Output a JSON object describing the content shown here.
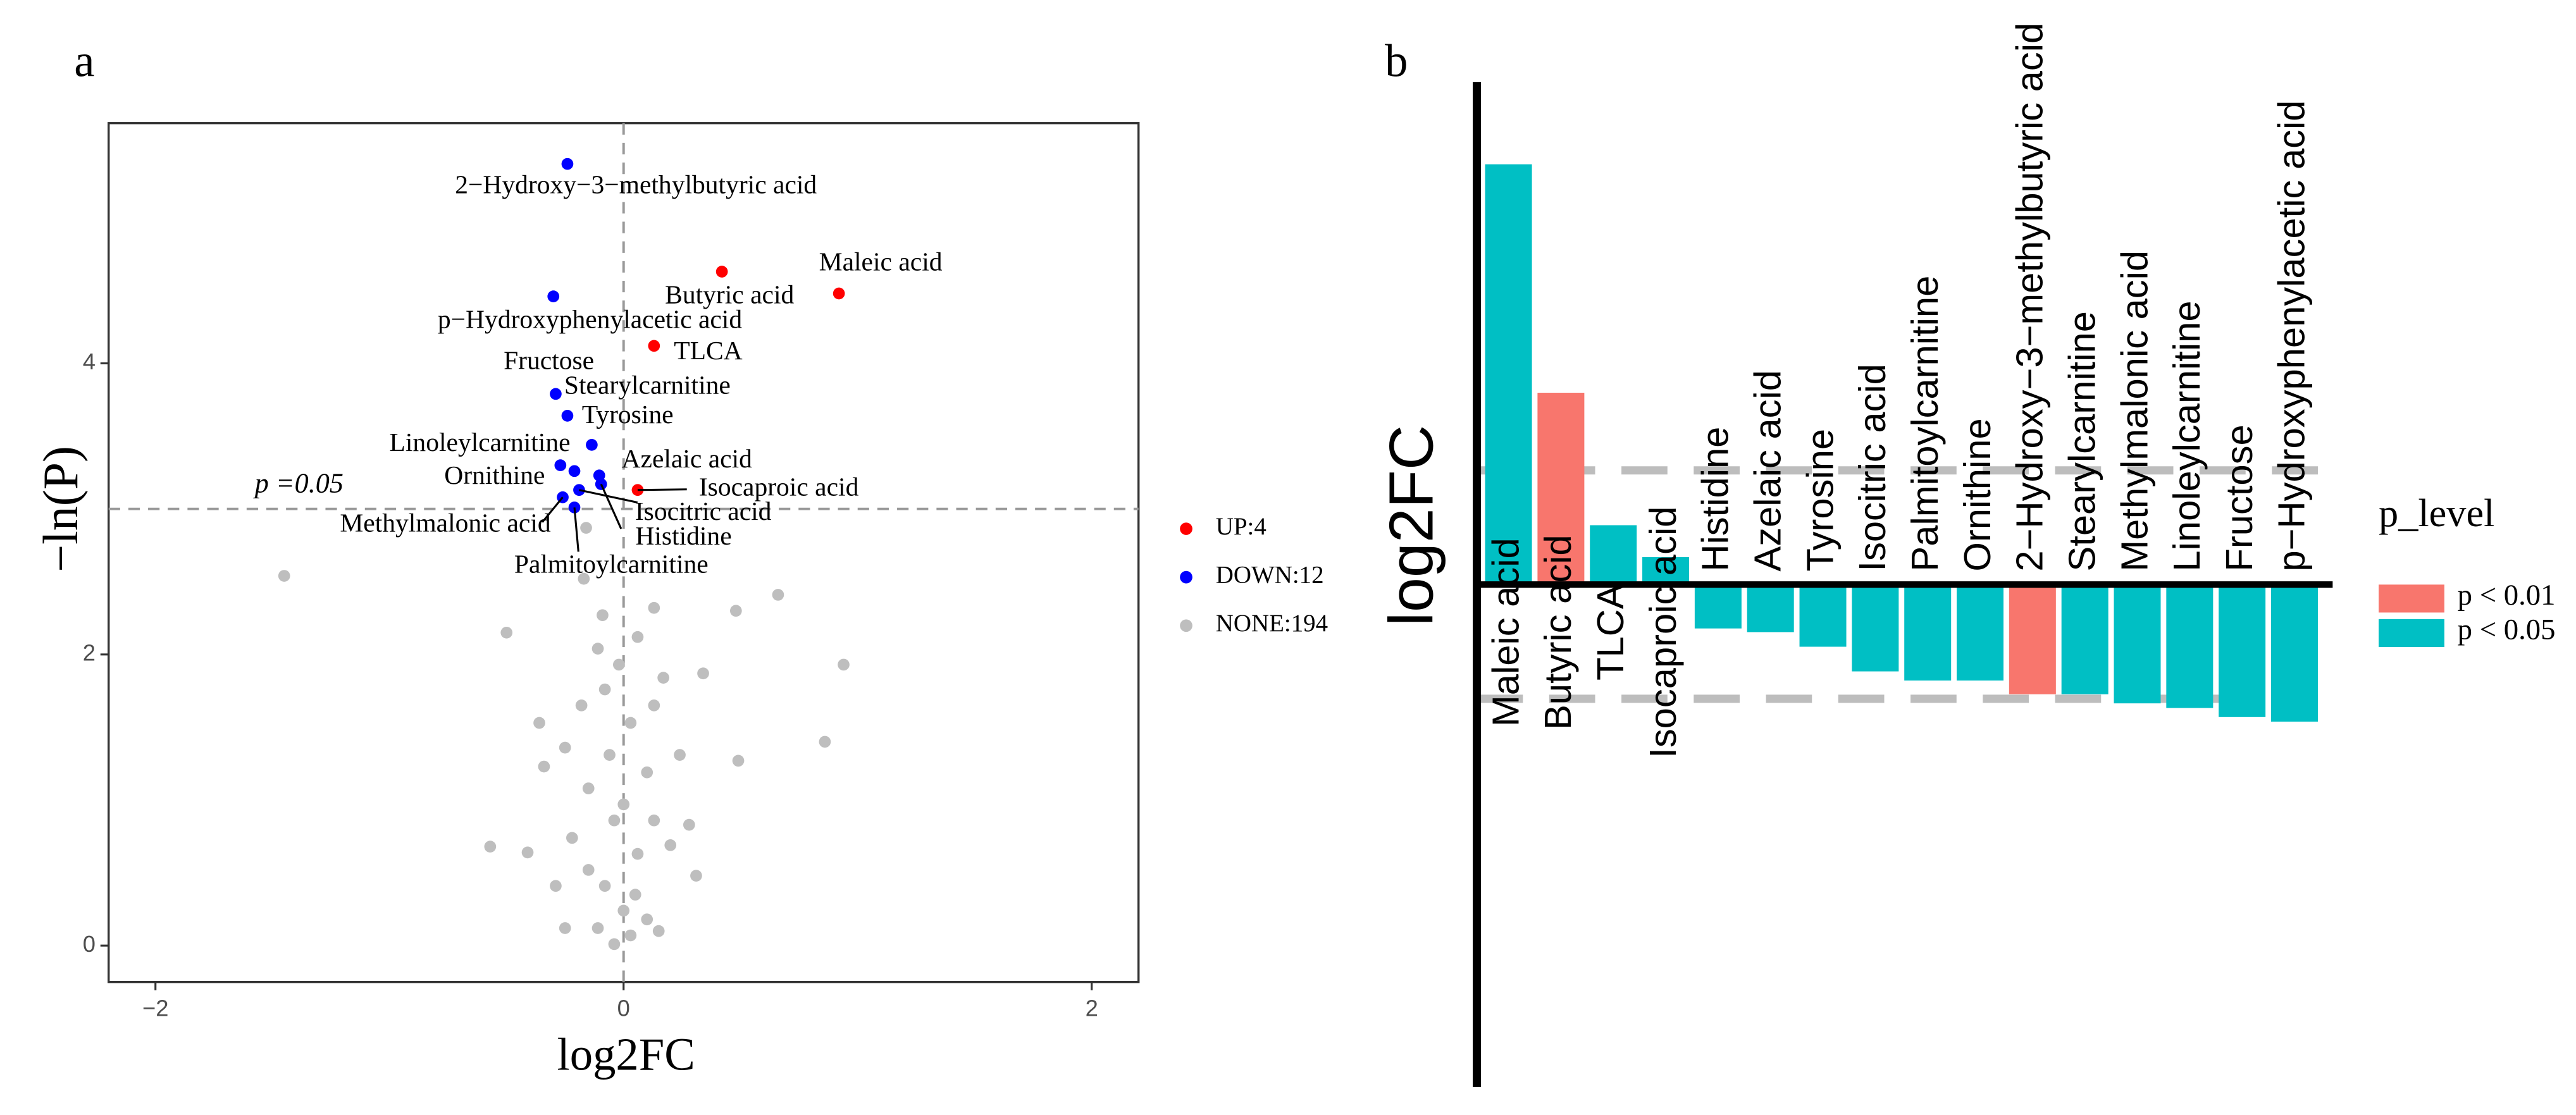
{
  "chart_data": [
    {
      "type": "scatter",
      "panel": "a",
      "xlabel": "log2FC",
      "ylabel": "−ln(P)",
      "xlim": [
        -2.2,
        2.2
      ],
      "ylim": [
        -0.25,
        5.65
      ],
      "xticks": [
        {
          "value": -2,
          "label": "−2"
        },
        0,
        2
      ],
      "yticks": [
        0,
        2,
        4
      ],
      "hline": 3,
      "vline": 0,
      "annotation": "p =0.05",
      "series": [
        {
          "name": "UP:4",
          "color": "#ff0000",
          "x": [
            0.92,
            0.42,
            0.13,
            0.06
          ],
          "values": [
            4.48,
            4.63,
            4.12,
            3.13
          ],
          "labels": [
            "Maleic acid",
            "Butyric acid",
            "TLCA",
            "Isocaproic acid"
          ]
        },
        {
          "name": "DOWN:12",
          "color": "#0000ff",
          "x": [
            -0.24,
            -0.3,
            -0.29,
            -0.24,
            -0.136,
            -0.27,
            -0.21,
            -0.104,
            -0.096,
            -0.19,
            -0.26,
            -0.21
          ],
          "values": [
            5.37,
            4.46,
            3.79,
            3.64,
            3.44,
            3.3,
            3.26,
            3.23,
            3.17,
            3.13,
            3.08,
            3.01
          ],
          "labels": [
            "2−Hydroxy−3−methylbutyric acid",
            "p−Hydroxyphenylacetic acid",
            "Fructose",
            "Stearylcarnitine",
            "Tyrosine",
            "Linoleylcarnitine",
            "Ornithine",
            "Azelaic acid",
            "Histidine",
            "Isocitric acid",
            "Methylmalonic acid",
            "Palmitoylcarnitine"
          ]
        },
        {
          "name": "NONE:194",
          "color": "#bebebe",
          "x": [
            -1.45,
            0.94,
            0.86,
            0.66,
            0.48,
            0.49,
            0.17,
            0.13,
            -0.5,
            -0.57,
            -0.34,
            -0.17,
            -0.16,
            0.28,
            0.31,
            -0.41,
            -0.25,
            0.15,
            0,
            -0.08,
            0.06,
            -0.04,
            -0.15,
            0.1,
            0.03,
            -0.08,
            -0.18,
            0.13,
            -0.02,
            -0.11,
            0.06,
            -0.22,
            0.2,
            -0.11,
            0.03,
            -0.04,
            0.1,
            -0.15,
            0.05,
            -0.29,
            0.24,
            -0.25,
            -0.06,
            0,
            0.13,
            -0.36,
            0.34,
            -0.09
          ],
          "values": [
            2.54,
            1.93,
            1.4,
            2.41,
            2.3,
            1.27,
            1.84,
            2.32,
            2.15,
            0.68,
            1.23,
            2.52,
            2.87,
            0.83,
            0.48,
            0.64,
            0.12,
            0.1,
            0.24,
            0.41,
            0.63,
            0.86,
            1.08,
            1.19,
            1.53,
            1.76,
            1.65,
            1.65,
            1.93,
            2.04,
            2.12,
            0.74,
            0.69,
            0.12,
            0.07,
            0.01,
            0.18,
            0.52,
            0.35,
            0.41,
            1.31,
            1.36,
            1.31,
            0.97,
            0.86,
            1.53,
            1.87,
            2.27
          ]
        }
      ]
    },
    {
      "type": "bar",
      "panel": "b",
      "ylabel": "log2FC",
      "ylim": [
        -1.1,
        1.1
      ],
      "hlines": [
        0.25,
        -0.25
      ],
      "categories": [
        "Maleic acid",
        "Butyric acid",
        "TLCA",
        "Isocaproic acid",
        "Histidine",
        "Azelaic acid",
        "Tyrosine",
        "Isocitric acid",
        "Palmitoylcarnitine",
        "Ornithine",
        "2−Hydroxy−3−methylbutyric acid",
        "Stearylcarnitine",
        "Methylmalonic acid",
        "Linoleylcarnitine",
        "Fructose",
        "p−Hydroxyphenylacetic acid"
      ],
      "values": [
        0.92,
        0.42,
        0.13,
        0.06,
        -0.096,
        -0.104,
        -0.136,
        -0.19,
        -0.21,
        -0.21,
        -0.24,
        -0.24,
        -0.26,
        -0.27,
        -0.29,
        -0.3
      ],
      "colors": [
        "#00bfc4",
        "#f8766d",
        "#00bfc4",
        "#00bfc4",
        "#00bfc4",
        "#00bfc4",
        "#00bfc4",
        "#00bfc4",
        "#00bfc4",
        "#00bfc4",
        "#f8766d",
        "#00bfc4",
        "#00bfc4",
        "#00bfc4",
        "#00bfc4",
        "#00bfc4"
      ],
      "legend": {
        "title": "p_level",
        "entries": [
          {
            "name": "p < 0.01",
            "color": "#f8766d"
          },
          {
            "name": "p < 0.05",
            "color": "#00bfc4"
          }
        ]
      }
    }
  ]
}
